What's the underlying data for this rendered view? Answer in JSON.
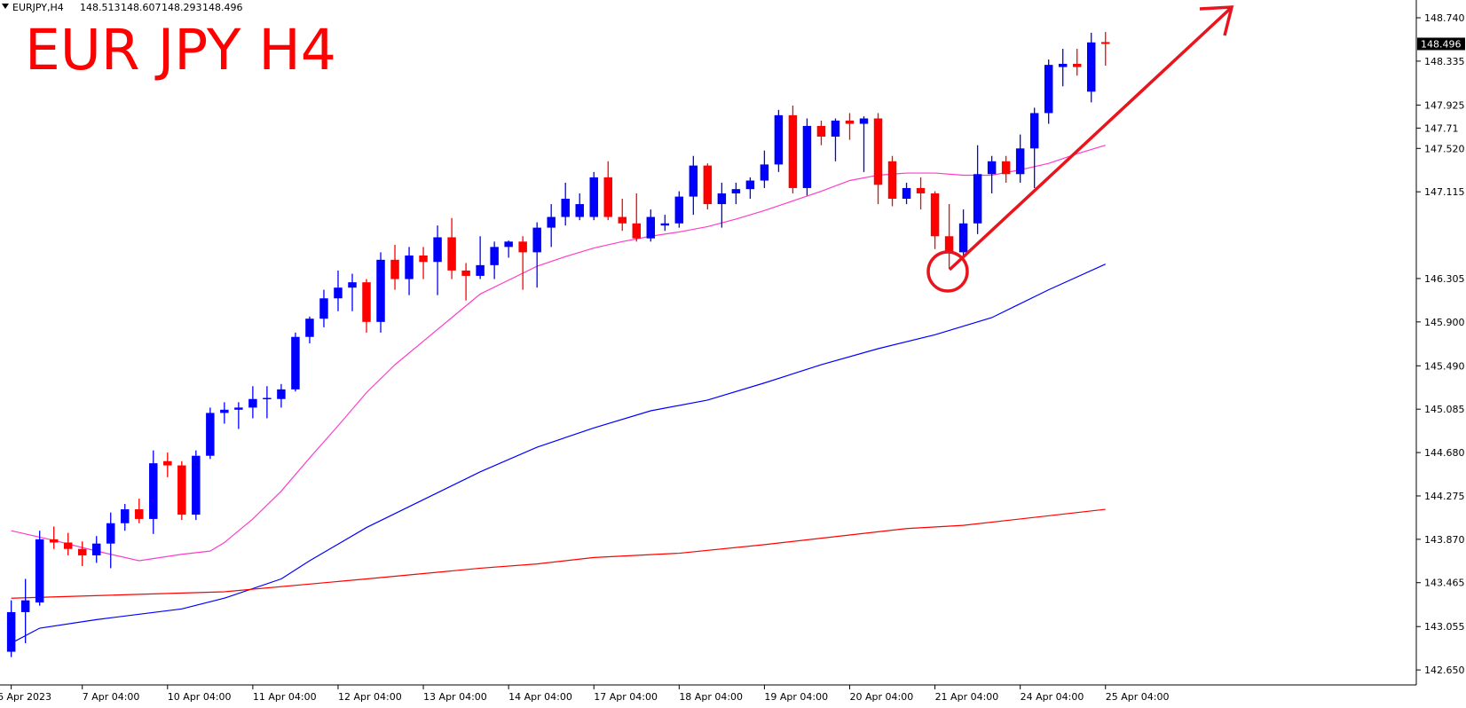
{
  "chart_data": {
    "type": "candlestick",
    "title": "EUR JPY H4",
    "symbol": "EURJPY,H4",
    "categories": [
      "6 Apr 2023",
      null,
      null,
      null,
      null,
      "7 Apr 04:00",
      null,
      null,
      null,
      null,
      null,
      "10 Apr 04:00",
      null,
      null,
      null,
      null,
      null,
      "11 Apr 04:00",
      null,
      null,
      null,
      null,
      null,
      "12 Apr 04:00",
      null,
      null,
      null,
      null,
      null,
      "13 Apr 04:00",
      null,
      null,
      null,
      null,
      null,
      "14 Apr 04:00",
      null,
      null,
      null,
      null,
      null,
      "17 Apr 04:00",
      null,
      null,
      null,
      null,
      null,
      "18 Apr 04:00",
      null,
      null,
      null,
      null,
      null,
      "19 Apr 04:00",
      null,
      null,
      null,
      null,
      null,
      "20 Apr 04:00",
      null,
      null,
      null,
      null,
      null,
      "21 Apr 04:00",
      null,
      null,
      null,
      null,
      null,
      "24 Apr 04:00",
      null,
      null,
      null,
      null,
      null,
      "25 Apr 04:00"
    ],
    "open": [
      142.82,
      143.19,
      143.28,
      143.87,
      143.84,
      143.78,
      143.72,
      143.83,
      144.02,
      144.15,
      144.06,
      144.6,
      144.56,
      144.1,
      144.65,
      145.05,
      145.08,
      145.1,
      145.18,
      145.18,
      145.27,
      145.76,
      145.93,
      146.12,
      146.22,
      146.27,
      145.9,
      146.48,
      146.3,
      146.52,
      146.46,
      146.69,
      146.38,
      146.33,
      146.43,
      146.6,
      146.65,
      146.55,
      146.78,
      146.88,
      146.88,
      146.88,
      147.25,
      146.88,
      146.82,
      146.68,
      146.8,
      146.82,
      147.07,
      147.36,
      147.0,
      147.1,
      147.14,
      147.22,
      147.37,
      147.83,
      147.15,
      147.73,
      147.63,
      147.78,
      147.75,
      147.8,
      147.4,
      147.05,
      147.15,
      147.1,
      146.7,
      146.55,
      146.82,
      147.28,
      147.4,
      147.28,
      147.52,
      147.85,
      148.28,
      148.31,
      148.05,
      148.513
    ],
    "high": [
      143.3,
      143.5,
      143.95,
      143.99,
      143.93,
      143.85,
      143.9,
      144.12,
      144.2,
      144.25,
      144.7,
      144.68,
      144.6,
      144.7,
      145.1,
      145.15,
      145.15,
      145.3,
      145.3,
      145.32,
      145.8,
      145.95,
      146.2,
      146.38,
      146.35,
      146.3,
      146.55,
      146.62,
      146.6,
      146.6,
      146.8,
      146.87,
      146.45,
      146.7,
      146.65,
      146.66,
      146.7,
      146.83,
      147.0,
      147.2,
      147.1,
      147.3,
      147.4,
      147.05,
      147.1,
      146.95,
      146.9,
      147.12,
      147.45,
      147.38,
      147.2,
      147.2,
      147.25,
      147.5,
      147.88,
      147.92,
      147.8,
      147.78,
      147.8,
      147.85,
      147.82,
      147.85,
      147.45,
      147.2,
      147.25,
      147.12,
      147.0,
      146.95,
      147.55,
      147.45,
      147.45,
      147.65,
      147.9,
      148.35,
      148.45,
      148.45,
      148.6,
      148.607
    ],
    "low": [
      142.77,
      142.9,
      143.25,
      143.78,
      143.72,
      143.62,
      143.65,
      143.6,
      143.95,
      144.02,
      143.92,
      144.45,
      144.05,
      144.05,
      144.62,
      144.95,
      144.9,
      145.0,
      145.0,
      145.1,
      145.25,
      145.7,
      145.85,
      146.0,
      146.0,
      145.8,
      145.8,
      146.2,
      146.15,
      146.3,
      146.15,
      146.3,
      146.1,
      146.3,
      146.3,
      146.5,
      146.2,
      146.22,
      146.6,
      146.8,
      146.85,
      146.85,
      146.85,
      146.75,
      146.65,
      146.65,
      146.75,
      146.78,
      146.9,
      146.95,
      146.78,
      147.0,
      147.05,
      147.15,
      147.3,
      147.1,
      147.08,
      147.55,
      147.4,
      147.6,
      147.3,
      147.0,
      146.98,
      147.0,
      146.95,
      146.58,
      146.4,
      146.5,
      146.72,
      147.1,
      147.2,
      147.2,
      147.15,
      147.75,
      148.1,
      148.2,
      147.95,
      148.293
    ],
    "close": [
      143.19,
      143.3,
      143.87,
      143.84,
      143.78,
      143.72,
      143.83,
      144.02,
      144.15,
      144.06,
      144.58,
      144.56,
      144.1,
      144.65,
      145.05,
      145.08,
      145.1,
      145.18,
      145.19,
      145.27,
      145.76,
      145.93,
      146.12,
      146.22,
      146.27,
      145.9,
      146.48,
      146.3,
      146.52,
      146.46,
      146.69,
      146.38,
      146.33,
      146.43,
      146.6,
      146.65,
      146.55,
      146.78,
      146.88,
      147.05,
      147.0,
      147.25,
      146.88,
      146.82,
      146.68,
      146.88,
      146.82,
      147.07,
      147.36,
      147.0,
      147.1,
      147.14,
      147.22,
      147.37,
      147.83,
      147.15,
      147.73,
      147.63,
      147.78,
      147.75,
      147.8,
      147.18,
      147.05,
      147.15,
      147.1,
      146.7,
      146.55,
      146.82,
      147.28,
      147.4,
      147.28,
      147.52,
      147.85,
      148.3,
      148.31,
      148.28,
      148.51,
      148.496
    ],
    "up_color": "#0000ff",
    "down_color": "#ff0000",
    "lines": [
      {
        "color": "#ff3cc8",
        "x": [
          0,
          3,
          6,
          9,
          12,
          14,
          15,
          17,
          19,
          21,
          23,
          25,
          27,
          29,
          31,
          33,
          35,
          37,
          39,
          41,
          43,
          45,
          47,
          49,
          51,
          53,
          55,
          57,
          59,
          61,
          63,
          65,
          67,
          69,
          71,
          73,
          75,
          77
        ],
        "values": [
          143.95,
          143.86,
          143.76,
          143.67,
          143.73,
          143.76,
          143.84,
          144.06,
          144.32,
          144.63,
          144.93,
          145.24,
          145.5,
          145.72,
          145.94,
          146.16,
          146.29,
          146.42,
          146.51,
          146.59,
          146.65,
          146.7,
          146.74,
          146.79,
          146.86,
          146.94,
          147.03,
          147.12,
          147.22,
          147.27,
          147.29,
          147.29,
          147.27,
          147.27,
          147.32,
          147.38,
          147.47,
          147.55
        ]
      },
      {
        "color": "#0000ff",
        "x": [
          0,
          2,
          6,
          12,
          15,
          19,
          21,
          25,
          29,
          33,
          37,
          41,
          45,
          49,
          53,
          57,
          61,
          65,
          69,
          73,
          77
        ],
        "values": [
          142.9,
          143.04,
          143.12,
          143.22,
          143.32,
          143.5,
          143.67,
          143.98,
          144.24,
          144.5,
          144.73,
          144.91,
          145.07,
          145.17,
          145.33,
          145.5,
          145.65,
          145.78,
          145.94,
          146.2,
          146.44
        ]
      },
      {
        "color": "#ff0000",
        "x": [
          0,
          15,
          25,
          33,
          37,
          41,
          47,
          53,
          59,
          63,
          67,
          71,
          75,
          77
        ],
        "values": [
          143.32,
          143.38,
          143.5,
          143.6,
          143.64,
          143.7,
          143.74,
          143.82,
          143.91,
          143.97,
          144.0,
          144.06,
          144.12,
          144.15
        ]
      }
    ],
    "ylim": [
      142.51,
      148.906
    ],
    "yticks": [
      {
        "value": 148.74,
        "label": "148.740"
      },
      148.335,
      147.925,
      {
        "value": 147.52,
        "label": "147.520"
      },
      147.115,
      147.71,
      146.305,
      {
        "value": 145.9,
        "label": "145.900"
      },
      {
        "value": 145.49,
        "label": "145.490"
      },
      145.085,
      {
        "value": 144.68,
        "label": "144.680"
      },
      144.275,
      {
        "value": 143.87,
        "label": "143.870"
      },
      143.465,
      143.055,
      {
        "value": 142.65,
        "label": "142.650"
      }
    ]
  }
}
